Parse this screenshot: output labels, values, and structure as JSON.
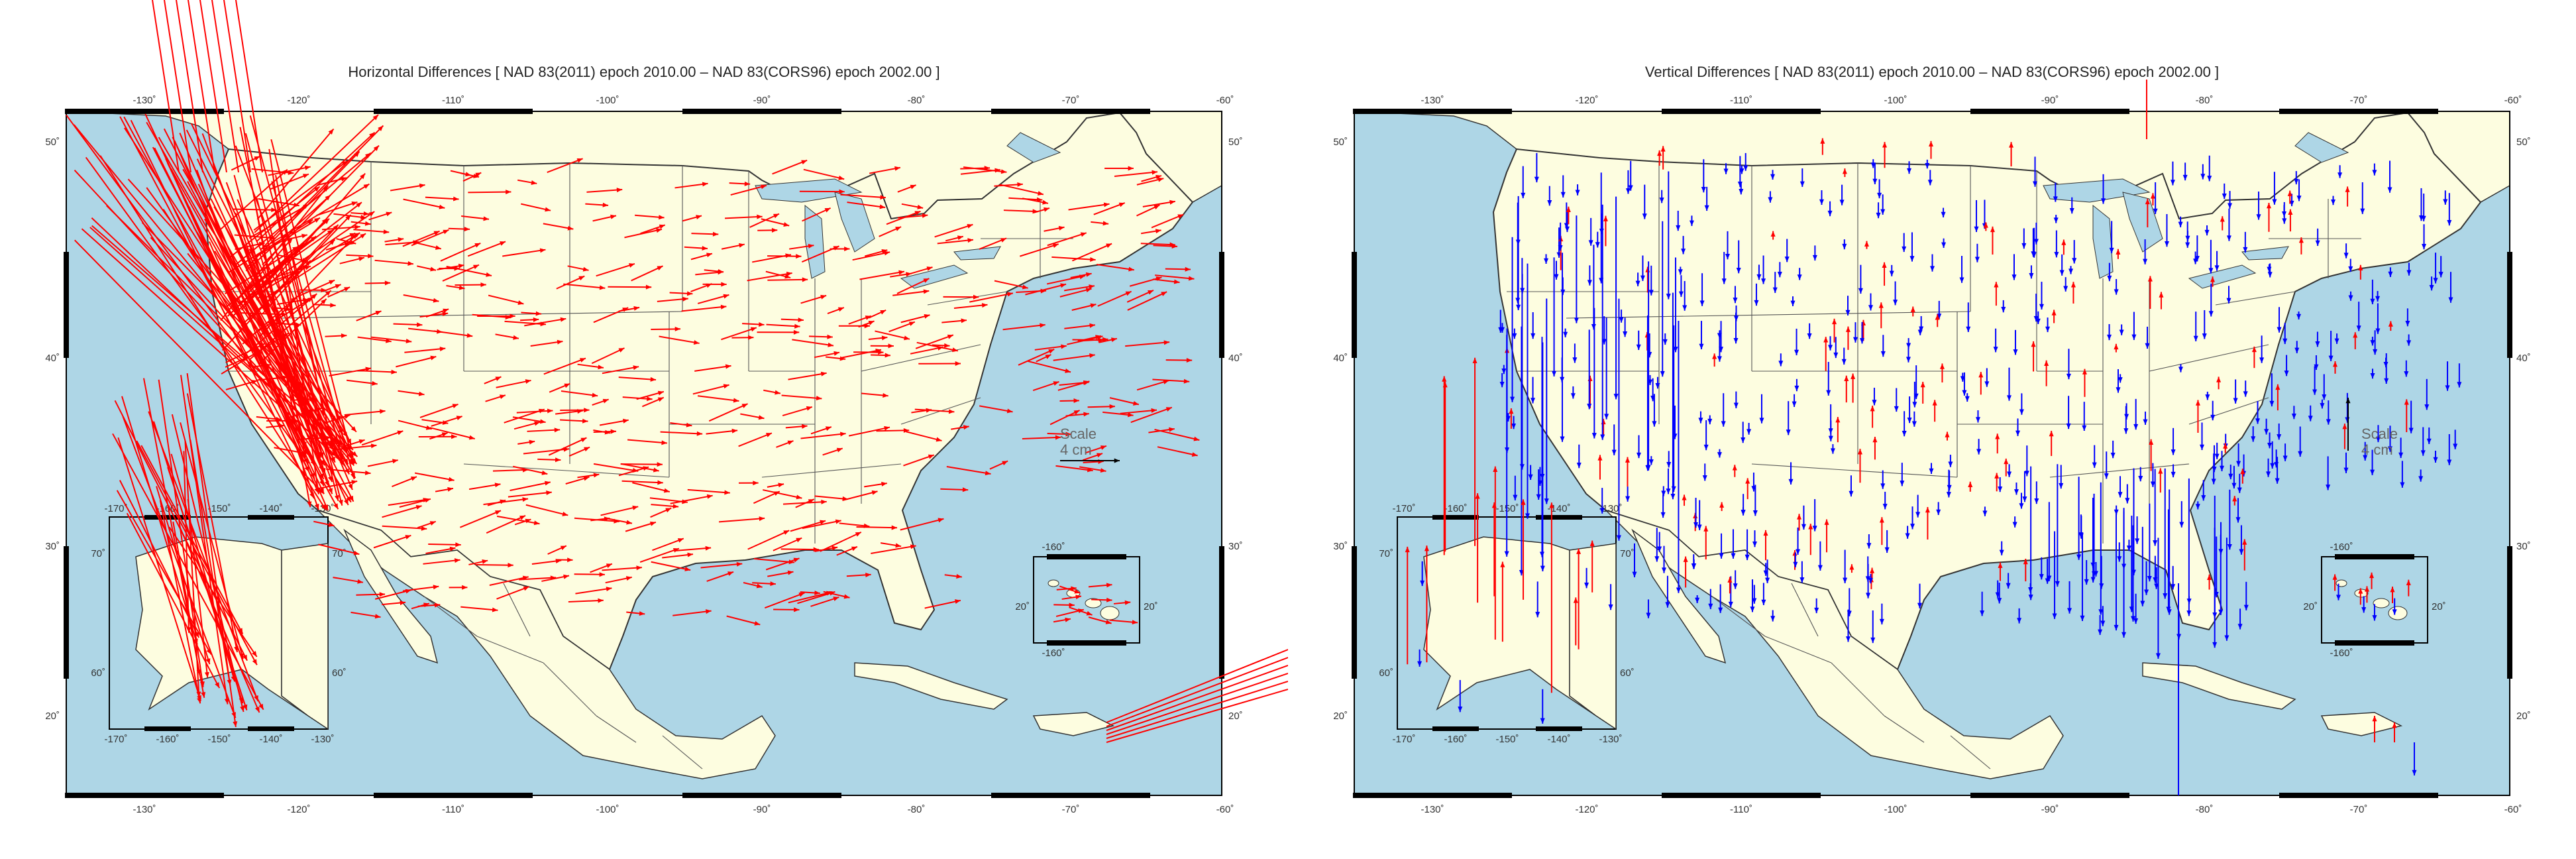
{
  "panels": [
    {
      "title": "Horizontal Differences [ NAD 83(2011) epoch 2010.00 – NAD 83(CORS96) epoch 2002.00 ]",
      "vector_color": "#ff0000",
      "scale_label": "Scale",
      "scale_unit": "4 cm"
    },
    {
      "title": "Vertical Differences [ NAD 83(2011) epoch 2010.00 – NAD 83(CORS96) epoch 2002.00 ]",
      "up_color": "#ff0000",
      "down_color": "#0000ff",
      "scale_label": "Scale",
      "scale_unit": "4 cm"
    }
  ],
  "axes": {
    "longitude_ticks": [
      "-130˚",
      "-120˚",
      "-110˚",
      "-100˚",
      "-90˚",
      "-80˚",
      "-70˚",
      "-60˚"
    ],
    "latitude_ticks": [
      "50˚",
      "40˚",
      "30˚",
      "20˚"
    ]
  },
  "alaska_inset": {
    "top_ticks": [
      "-170˚",
      "-160˚",
      "-150˚",
      "-140˚",
      "-130˚"
    ],
    "bottom_ticks": [
      "-170˚",
      "-160˚",
      "-150˚",
      "-140˚",
      "-130˚"
    ],
    "left_ticks": [
      "70˚",
      "60˚"
    ],
    "right_ticks": [
      "70˚",
      "60˚"
    ]
  },
  "hawaii_inset": {
    "top_tick": "-160˚",
    "bottom_tick": "-160˚",
    "left_tick": "20˚",
    "right_tick": "20˚"
  },
  "colors": {
    "ocean": "#aed6e6",
    "land": "#fdfde0",
    "border": "#333333"
  }
}
